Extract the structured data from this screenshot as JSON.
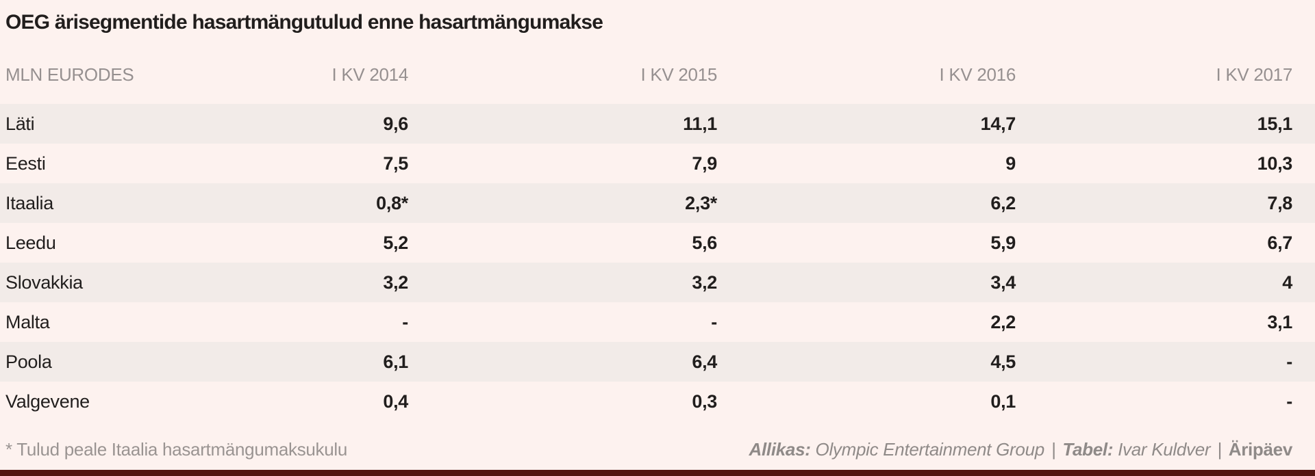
{
  "title": "OEG ärisegmentide hasartmängutulud enne hasartmängumakse",
  "table": {
    "unit_label": "MLN EURODES",
    "columns": [
      "I KV 2014",
      "I KV 2015",
      "I KV 2016",
      "I KV 2017"
    ],
    "rows": [
      {
        "label": "Läti",
        "values": [
          "9,6",
          "11,1",
          "14,7",
          "15,1"
        ]
      },
      {
        "label": "Eesti",
        "values": [
          "7,5",
          "7,9",
          "9",
          "10,3"
        ]
      },
      {
        "label": "Itaalia",
        "values": [
          "0,8*",
          "2,3*",
          "6,2",
          "7,8"
        ]
      },
      {
        "label": "Leedu",
        "values": [
          "5,2",
          "5,6",
          "5,9",
          "6,7"
        ]
      },
      {
        "label": "Slovakkia",
        "values": [
          "3,2",
          "3,2",
          "3,4",
          "4"
        ]
      },
      {
        "label": "Malta",
        "values": [
          "-",
          "-",
          "2,2",
          "3,1"
        ]
      },
      {
        "label": "Poola",
        "values": [
          "6,1",
          "6,4",
          "4,5",
          "-"
        ]
      },
      {
        "label": "Valgevene",
        "values": [
          "0,4",
          "0,3",
          "0,1",
          "-"
        ]
      }
    ]
  },
  "footnote": "* Tulud peale Itaalia hasartmängumaksukulu",
  "credits": {
    "source_label": "Allikas:",
    "source": "Olympic Entertainment Group",
    "separator1": "|",
    "table_label": "Tabel:",
    "table_author": "Ivar Kuldver",
    "separator2": "|",
    "brand": "Äripäev"
  },
  "colors": {
    "background": "#fdf2ef",
    "row_stripe": "#f2ebe8",
    "text_dark": "#211e1d",
    "text_gray": "#969090",
    "bottom_bar": "#541511"
  },
  "chart_data": {
    "type": "table",
    "title": "OEG ärisegmentide hasartmängutulud enne hasartmängumakse",
    "unit": "MLN EURODES",
    "categories": [
      "Läti",
      "Eesti",
      "Itaalia",
      "Leedu",
      "Slovakkia",
      "Malta",
      "Poola",
      "Valgevene"
    ],
    "series": [
      {
        "name": "I KV 2014",
        "values": [
          9.6,
          7.5,
          0.8,
          5.2,
          3.2,
          null,
          6.1,
          0.4
        ]
      },
      {
        "name": "I KV 2015",
        "values": [
          11.1,
          7.9,
          2.3,
          5.6,
          3.2,
          null,
          6.4,
          0.3
        ]
      },
      {
        "name": "I KV 2016",
        "values": [
          14.7,
          9,
          6.2,
          5.9,
          3.4,
          2.2,
          4.5,
          0.1
        ]
      },
      {
        "name": "I KV 2017",
        "values": [
          15.1,
          10.3,
          7.8,
          6.7,
          4,
          3.1,
          null,
          null
        ]
      }
    ],
    "footnote": "* Tulud peale Itaalia hasartmängumaksukulu",
    "source": "Olympic Entertainment Group"
  }
}
